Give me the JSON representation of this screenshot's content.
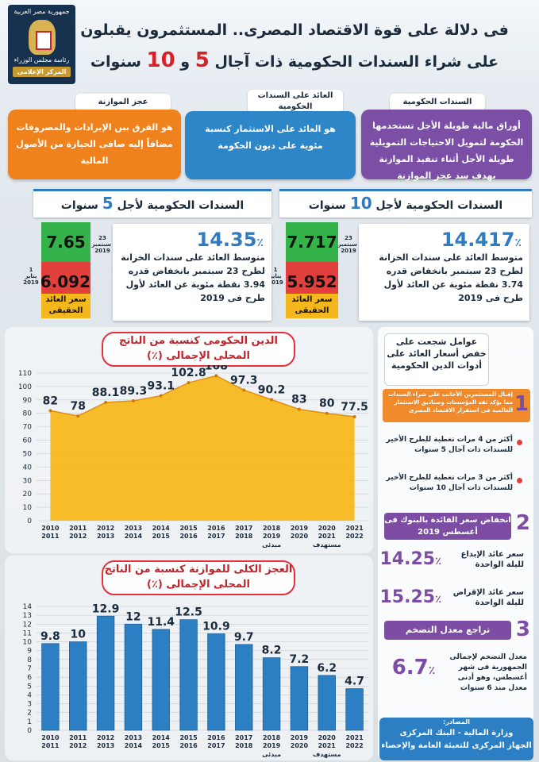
{
  "header": {
    "title_line1": "فى دلالة على قوة الاقتصاد المصرى.. المستثمرون يقبلون",
    "title_line2_a": "على شراء السندات الحكومية ذات آجال ",
    "title_line2_5": "5",
    "title_line2_and": " و ",
    "title_line2_10": "10",
    "title_line2_b": " سنوات",
    "logo_top": "جمهورية مصر العربية",
    "logo_mid": "رئاسة مجلس الوزراء",
    "logo_bottom": "المركز الإعلامى"
  },
  "definitions": [
    {
      "title": "السندات الحكومية",
      "body": "أوراق مالية طويلة الأجل تستخدمها الحكومة لتمويل الاحتياجات التمويلية طويلة الأجل أثناء تنفيذ الموازنة بهدف سد عجز الموازنة",
      "color": "#7b4fa6"
    },
    {
      "title": "العائد على السندات الحكومية",
      "body": "هو العائد على الاستثمار كنسبة مئوية على ديون الحكومة",
      "color": "#2d86c8"
    },
    {
      "title": "عجز الموازنة",
      "body": "هو الفرق بين الإيرادات والمصروفات مضافاً إليه صافى الحيازة من الأصول المالية",
      "color": "#f0821e"
    }
  ],
  "bonds": [
    {
      "title_a": "السندات الحكومية لأجل ",
      "title_n": "10",
      "title_b": " سنوات",
      "avg": "14.417",
      "pct_sign": "٪",
      "text": "متوسط العائد على سندات الخزانة لطرح 23 سبتمبر بانخفاض قدره 3.74 نقطة مئوية عن العائد لأول طرح فى 2019",
      "real_high": "7.717",
      "real_low": "5.952",
      "date_high": "23 سبتمبر 2019",
      "date_low": "1 يناير 2019",
      "real_label": "سعر العائد الحقيقى"
    },
    {
      "title_a": "السندات الحكومية لأجل ",
      "title_n": "5",
      "title_b": " سنوات",
      "avg": "14.35",
      "pct_sign": "٪",
      "text": "متوسط العائد على سندات الخزانة لطرح 23 سبتمبر بانخفاض قدره 3.94 نقطة مئوية عن العائد لأول طرح فى 2019",
      "real_high": "7.65",
      "real_low": "6.092",
      "date_high": "23 سبتمبر 2019",
      "date_low": "1 يناير 2019",
      "real_label": "سعر العائد الحقيقى"
    }
  ],
  "chart_data": [
    {
      "type": "area",
      "title": "الدين الحكومى كنسبة من الناتج المحلى الإجمالى (٪)",
      "categories": [
        "2010/2011",
        "2011/2012",
        "2012/2013",
        "2013/2014",
        "2014/2015",
        "2015/2016",
        "2016/2017",
        "2017/2018",
        "2018/2019",
        "2019/2020",
        "2020/2021",
        "2021/2022"
      ],
      "values": [
        82,
        78,
        88.1,
        89.3,
        93.1,
        102.8,
        108,
        97.3,
        90.2,
        83,
        80,
        77.5
      ],
      "labels": [
        "82",
        "78",
        "88.1",
        "89.3",
        "93.1",
        "102.8",
        "108",
        "97.3",
        "90.2",
        "83",
        "80",
        "77.5"
      ],
      "ylim": [
        0,
        110
      ],
      "yticks": [
        0,
        10,
        20,
        30,
        40,
        50,
        60,
        70,
        80,
        90,
        100,
        110
      ],
      "annotations": [
        "مبدئى",
        "مستهدف"
      ],
      "color": "#f6b81f"
    },
    {
      "type": "bar",
      "title": "العجز الكلى للموازنة كنسبة من الناتج المحلى الإجمالى (٪)",
      "categories": [
        "2010/2011",
        "2011/2012",
        "2012/2013",
        "2013/2014",
        "2014/2015",
        "2015/2016",
        "2016/2017",
        "2017/2018",
        "2018/2019",
        "2019/2020",
        "2020/2021",
        "2021/2022"
      ],
      "values": [
        9.8,
        10,
        12.9,
        12,
        11.4,
        12.5,
        10.9,
        9.7,
        8.2,
        7.2,
        6.2,
        4.7
      ],
      "labels": [
        "9.8",
        "10",
        "12.9",
        "12",
        "11.4",
        "12.5",
        "10.9",
        "9.7",
        "8.2",
        "7.2",
        "6.2",
        "4.7"
      ],
      "ylim": [
        0,
        14
      ],
      "yticks": [
        0,
        1,
        2,
        3,
        4,
        5,
        6,
        7,
        8,
        9,
        10,
        11,
        12,
        13,
        14
      ],
      "annotations": [
        "مبدئى",
        "مستهدف"
      ],
      "color": "#2d7fc4"
    }
  ],
  "side": {
    "title": "عوامل شجعت على خفض أسعار العائد على أدوات الدين الحكومية",
    "f1_num": "1",
    "f1_text": "إقبال المستثمرين الأجانب على شراء السندات مما يؤكد ثقة المؤسسات وصناديق الاستثمار العالمية فى استقرار الاقتصاد المصرى",
    "f1_b1": "أكثر من 4 مرات تغطية للطرح الأخير للسندات ذات آجال 5 سنوات",
    "f1_b2": "أكثر من 3 مرات تغطية للطرح الأخير للسندات ذات آجال 10 سنوات",
    "f2_num": "2",
    "f2_text": "انخفاض سعر الفائدة بالبنوك فى أغسطس 2019",
    "f2_v1": "14.25",
    "f2_l1": "سعر عائد الإيداع لليلة الواحدة",
    "f2_v2": "15.25",
    "f2_l2": "سعر عائد الإقراض لليلة الواحدة",
    "f3_num": "3",
    "f3_text": "تراجع معدل التضخم",
    "f3_v": "6.7",
    "f3_l": "معدل التضخم لإجمالى الجمهورية فى شهر أغسطس، وهو أدنى معدل منذ 6 سنوات",
    "pct": "٪",
    "src_title": "المصادر:",
    "src1": "وزارة المالية - البنك المركزى",
    "src2": "الجهاز المركزى للتعبئة العامة والإحصاء"
  }
}
